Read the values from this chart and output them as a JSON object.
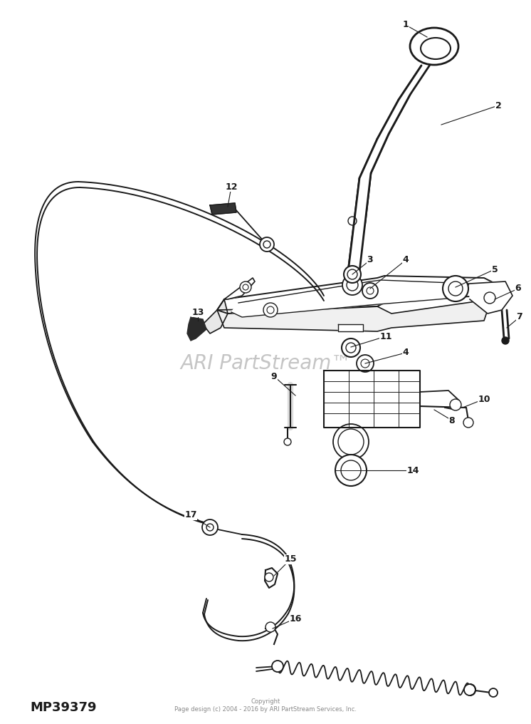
{
  "background_color": "#ffffff",
  "line_color": "#1a1a1a",
  "watermark_text": "ARI PartStream™",
  "watermark_color": "#bbbbbb",
  "watermark_fontsize": 20,
  "copyright_text": "Copyright\nPage design (c) 2004 - 2016 by ARI PartStream Services, Inc.",
  "copyright_fontsize": 6,
  "part_number_text": "MP39379",
  "part_number_fontsize": 13,
  "fig_width": 7.46,
  "fig_height": 10.16,
  "dpi": 100
}
